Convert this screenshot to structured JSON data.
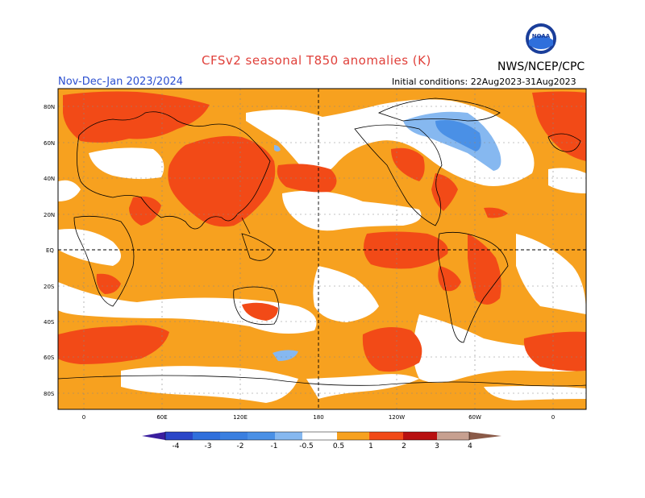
{
  "header": {
    "title": "CFSv2 seasonal T850 anomalies (K)",
    "season": "Nov-Dec-Jan 2023/2024",
    "initial_conditions": "Initial conditions: 22Aug2023-31Aug2023",
    "agency": "NWS/NCEP/CPC",
    "logo_text": "NOAA"
  },
  "axes": {
    "lat_labels": [
      "80N",
      "60N",
      "40N",
      "20N",
      "EQ",
      "20S",
      "40S",
      "60S",
      "80S"
    ],
    "lon_labels": [
      "0",
      "60E",
      "120E",
      "180",
      "120W",
      "60W",
      "0"
    ]
  },
  "legend": {
    "levels": [
      "-4",
      "-3",
      "-2",
      "-1",
      "-0.5",
      "0.5",
      "1",
      "2",
      "3",
      "4"
    ],
    "colors": [
      "#3a1e9e",
      "#2a46c8",
      "#2f6fdc",
      "#4a90e6",
      "#86b8f0",
      "#ffffff",
      "#f7a11f",
      "#f24a17",
      "#c01010",
      "#8b0e0e",
      "#c7a090",
      "#8a5a48"
    ]
  },
  "colors": {
    "warm1": "#f7a11f",
    "warm2": "#f24a17",
    "cool1": "#86b8f0",
    "cool2": "#4a90e6"
  }
}
